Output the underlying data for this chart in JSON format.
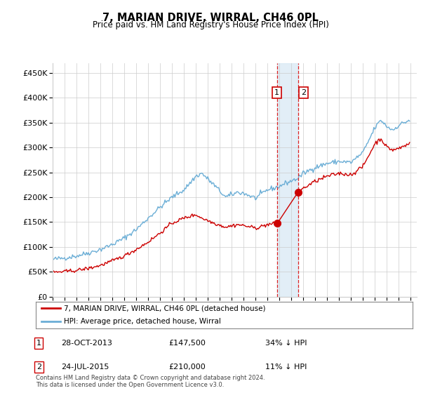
{
  "title": "7, MARIAN DRIVE, WIRRAL, CH46 0PL",
  "subtitle": "Price paid vs. HM Land Registry's House Price Index (HPI)",
  "ytick_values": [
    0,
    50000,
    100000,
    150000,
    200000,
    250000,
    300000,
    350000,
    400000,
    450000
  ],
  "ylim": [
    0,
    470000
  ],
  "xlim_start": 1995.0,
  "xlim_end": 2025.5,
  "hpi_color": "#6baed6",
  "price_color": "#cc0000",
  "transaction1": {
    "date": "28-OCT-2013",
    "price": 147500,
    "year": 2013.82,
    "label": "1",
    "pct": "34% ↓ HPI"
  },
  "transaction2": {
    "date": "24-JUL-2015",
    "price": 210000,
    "year": 2015.55,
    "label": "2",
    "pct": "11% ↓ HPI"
  },
  "legend_line1": "7, MARIAN DRIVE, WIRRAL, CH46 0PL (detached house)",
  "legend_line2": "HPI: Average price, detached house, Wirral",
  "footer": "Contains HM Land Registry data © Crown copyright and database right 2024.\nThis data is licensed under the Open Government Licence v3.0.",
  "background_color": "#ffffff",
  "grid_color": "#cccccc",
  "shade_color": "#d6e8f5",
  "hpi_anchors_x": [
    1995.0,
    1996.0,
    1997.0,
    1998.0,
    1999.0,
    2000.0,
    2001.0,
    2002.0,
    2003.0,
    2004.0,
    2005.0,
    2006.0,
    2007.0,
    2007.5,
    2008.5,
    2009.5,
    2010.5,
    2011.0,
    2012.0,
    2013.0,
    2013.82,
    2014.5,
    2015.55,
    2016.0,
    2017.0,
    2018.0,
    2019.0,
    2020.0,
    2021.0,
    2021.5,
    2022.0,
    2022.5,
    2023.0,
    2023.5,
    2024.0,
    2024.9
  ],
  "hpi_anchors_y": [
    75000,
    78000,
    82000,
    88000,
    95000,
    105000,
    118000,
    135000,
    158000,
    180000,
    200000,
    215000,
    242000,
    248000,
    225000,
    200000,
    210000,
    208000,
    198000,
    215000,
    220000,
    228000,
    238000,
    248000,
    260000,
    268000,
    272000,
    270000,
    290000,
    315000,
    340000,
    355000,
    342000,
    335000,
    345000,
    355000
  ],
  "price_anchors_x": [
    1995.0,
    1996.0,
    1997.0,
    1998.0,
    1999.0,
    2000.0,
    2001.0,
    2002.0,
    2003.0,
    2004.0,
    2005.0,
    2006.0,
    2007.0,
    2007.5,
    2008.5,
    2009.5,
    2010.5,
    2011.0,
    2012.0,
    2013.0,
    2013.82
  ],
  "price_anchors_y": [
    49000,
    50500,
    53000,
    57000,
    63000,
    72000,
    82000,
    95000,
    110000,
    128000,
    148000,
    158000,
    165000,
    158000,
    148000,
    140000,
    145000,
    143000,
    138000,
    145000,
    147500
  ],
  "price2_anchors_x": [
    2015.55,
    2016.0,
    2017.0,
    2018.0,
    2019.0,
    2020.0,
    2021.0,
    2021.5,
    2022.0,
    2022.5,
    2023.0,
    2023.5,
    2024.0,
    2024.9
  ],
  "price2_anchors_y": [
    210000,
    218000,
    232000,
    242000,
    248000,
    245000,
    262000,
    285000,
    308000,
    318000,
    300000,
    295000,
    298000,
    308000
  ]
}
